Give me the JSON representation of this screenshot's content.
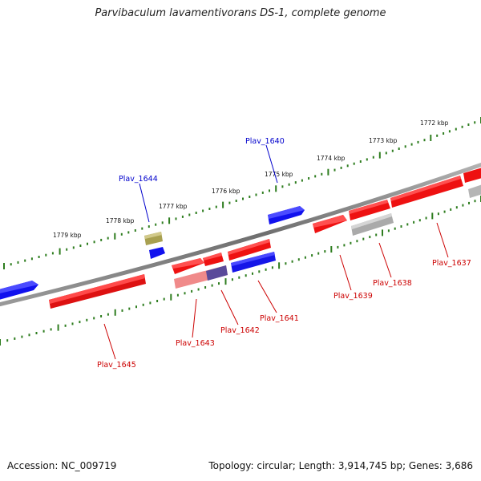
{
  "title": "Parvibaculum lavamentivorans DS-1, complete genome",
  "footer": {
    "accession": "Accession: NC_009719",
    "topology": "Topology: circular; Length: 3,914,745 bp; Genes: 3,686"
  },
  "colors": {
    "backbone": "#7a7a7a",
    "ruler": "#2e7d1f",
    "forward_gene": "#ee1111",
    "reverse_gene": "#1111ee",
    "label_forward": "#cc0000",
    "label_reverse": "#0000cc"
  },
  "kbp_labels": [
    "1772 kbp",
    "1773 kbp",
    "1774 kbp",
    "1775 kbp",
    "1776 kbp",
    "1777 kbp",
    "1778 kbp",
    "1779 kbp"
  ],
  "gene_labels": [
    {
      "text": "Plav_1637",
      "strand": "forward"
    },
    {
      "text": "Plav_1638",
      "strand": "forward"
    },
    {
      "text": "Plav_1639",
      "strand": "forward"
    },
    {
      "text": "Plav_1640",
      "strand": "reverse"
    },
    {
      "text": "Plav_1641",
      "strand": "forward"
    },
    {
      "text": "Plav_1642",
      "strand": "forward"
    },
    {
      "text": "Plav_1643",
      "strand": "forward"
    },
    {
      "text": "Plav_1644",
      "strand": "reverse"
    },
    {
      "text": "Plav_1645",
      "strand": "forward"
    }
  ]
}
